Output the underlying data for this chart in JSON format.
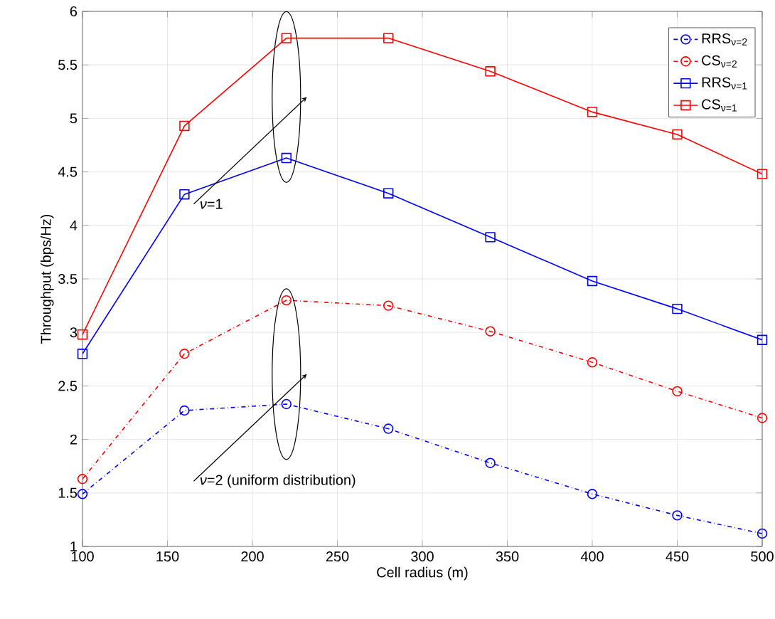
{
  "chart_data": {
    "type": "line",
    "xlabel": "Cell radius (m)",
    "ylabel": "Throughput (bps/Hz)",
    "x": [
      100,
      160,
      220,
      280,
      340,
      400,
      450,
      500
    ],
    "series": [
      {
        "name": "RRS$_{ν=2}$",
        "color": "#0000ff",
        "marker": "circle",
        "line_style": "dashdot",
        "values": [
          1.49,
          2.27,
          2.33,
          2.1,
          1.78,
          1.49,
          1.29,
          1.12
        ]
      },
      {
        "name": "CS$_{ν=2}$",
        "color": "#ff0000",
        "marker": "circle",
        "line_style": "dashdot",
        "values": [
          1.63,
          2.8,
          3.3,
          3.25,
          3.01,
          2.72,
          2.45,
          2.2
        ]
      },
      {
        "name": "RRS$_{ν=1}$",
        "color": "#0000ff",
        "marker": "square",
        "line_style": "solid",
        "values": [
          2.8,
          4.29,
          4.63,
          4.3,
          3.89,
          3.48,
          3.22,
          2.93
        ]
      },
      {
        "name": "CS$_{ν=1}$",
        "color": "#ff0000",
        "marker": "square",
        "line_style": "solid",
        "values": [
          2.98,
          4.93,
          5.75,
          5.75,
          5.44,
          5.06,
          4.85,
          4.48
        ]
      }
    ],
    "annotations": [
      {
        "text": "*ν*=1",
        "x": 232,
        "y": 5.2
      },
      {
        "text": "*ν*=2 (uniform distribution)",
        "x": 232,
        "y": 2.61
      }
    ],
    "xlim": [
      100,
      500
    ],
    "xticks": [
      100,
      150,
      200,
      250,
      300,
      350,
      400,
      450,
      500
    ],
    "ylim": [
      1,
      6
    ],
    "yticks": [
      1,
      1.5,
      2,
      2.5,
      3,
      3.5,
      4,
      4.5,
      5,
      5.5,
      6
    ],
    "grid": true,
    "legend": "top right"
  }
}
